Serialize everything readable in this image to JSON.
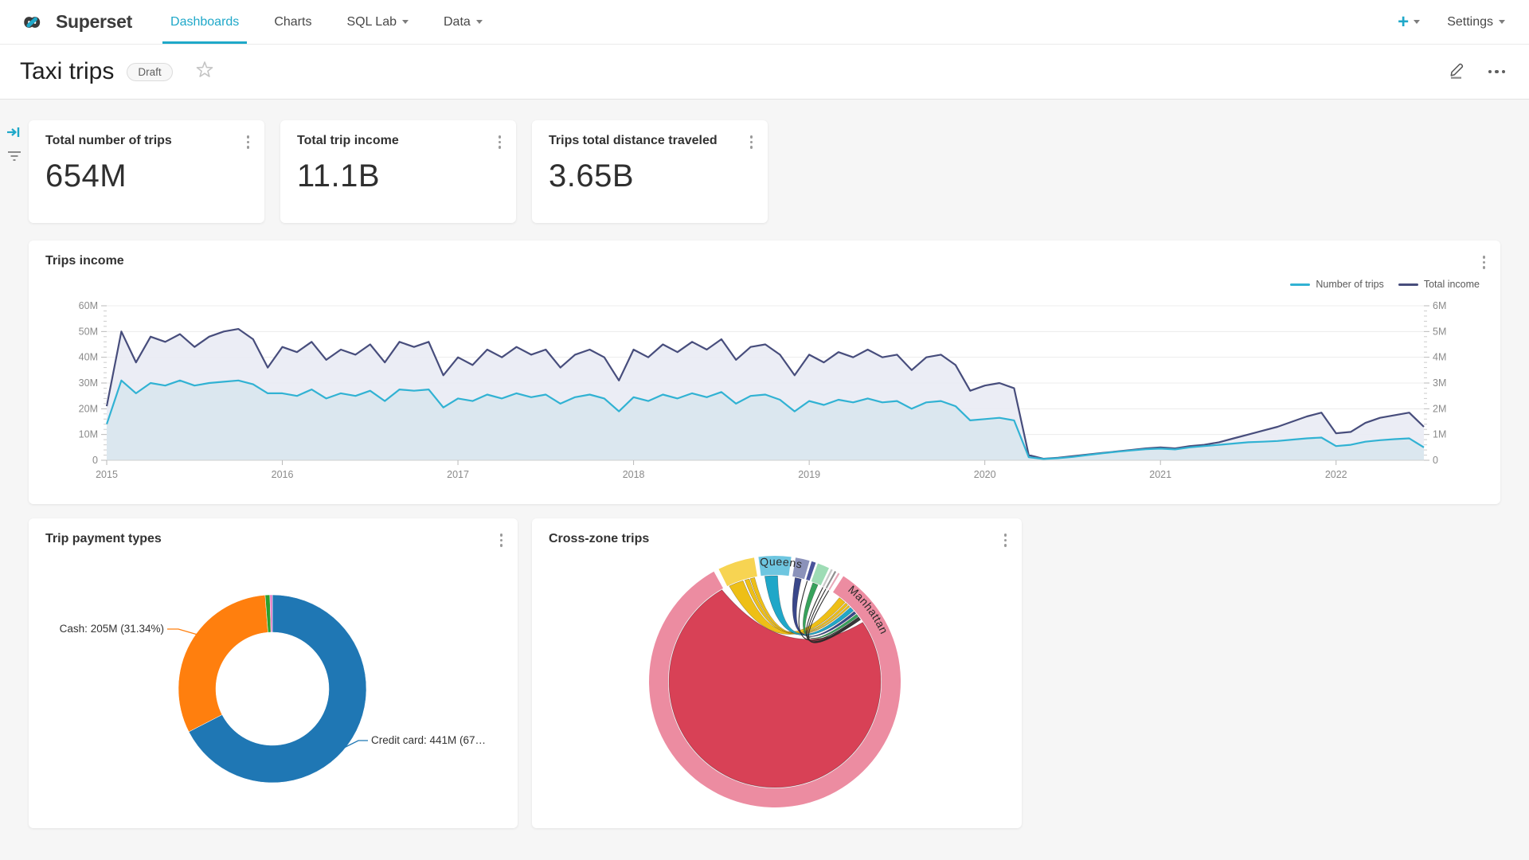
{
  "navbar": {
    "brand": "Superset",
    "items": [
      {
        "label": "Dashboards",
        "active": true,
        "caret": false
      },
      {
        "label": "Charts",
        "active": false,
        "caret": false
      },
      {
        "label": "SQL Lab",
        "active": false,
        "caret": true
      },
      {
        "label": "Data",
        "active": false,
        "caret": true
      }
    ],
    "plus_label": "+",
    "settings_label": "Settings",
    "accent_color": "#1fa8c9"
  },
  "header": {
    "title": "Taxi trips",
    "status_badge": "Draft"
  },
  "kpis": [
    {
      "title": "Total number of trips",
      "value": "654M"
    },
    {
      "title": "Total trip income",
      "value": "11.1B"
    },
    {
      "title": "Trips total distance traveled",
      "value": "3.65B"
    }
  ],
  "chart_data": [
    {
      "type": "line",
      "title": "Trips income",
      "legend_position": "top-right",
      "grid": true,
      "x_start": 2015,
      "x_step": 0.0833333,
      "x_tick_labels": [
        "2015",
        "2016",
        "2017",
        "2018",
        "2019",
        "2020",
        "2021",
        "2022"
      ],
      "y_left": {
        "ticks": [
          "0",
          "10M",
          "20M",
          "30M",
          "40M",
          "50M",
          "60M"
        ],
        "max": 60
      },
      "y_right": {
        "ticks": [
          "0",
          "1M",
          "2M",
          "3M",
          "4M",
          "5M",
          "6M"
        ],
        "max": 6
      },
      "series": [
        {
          "name": "Number of trips",
          "axis": "right",
          "color": "#31b2d3",
          "fill": "#d9e6ee",
          "values": [
            1.4,
            3.1,
            2.6,
            3.0,
            2.9,
            3.1,
            2.9,
            3.0,
            3.05,
            3.1,
            2.95,
            2.6,
            2.6,
            2.5,
            2.75,
            2.4,
            2.6,
            2.5,
            2.7,
            2.3,
            2.75,
            2.7,
            2.75,
            2.05,
            2.4,
            2.3,
            2.55,
            2.4,
            2.6,
            2.45,
            2.55,
            2.2,
            2.45,
            2.55,
            2.4,
            1.9,
            2.45,
            2.3,
            2.55,
            2.4,
            2.6,
            2.45,
            2.65,
            2.2,
            2.5,
            2.55,
            2.35,
            1.9,
            2.3,
            2.15,
            2.35,
            2.25,
            2.4,
            2.25,
            2.3,
            2.0,
            2.25,
            2.3,
            2.1,
            1.55,
            1.6,
            1.65,
            1.55,
            0.12,
            0.05,
            0.08,
            0.13,
            0.2,
            0.27,
            0.33,
            0.38,
            0.43,
            0.45,
            0.42,
            0.5,
            0.55,
            0.6,
            0.65,
            0.7,
            0.72,
            0.75,
            0.8,
            0.85,
            0.88,
            0.55,
            0.6,
            0.72,
            0.78,
            0.82,
            0.85,
            0.5
          ]
        },
        {
          "name": "Total income",
          "axis": "left",
          "color": "#474d7c",
          "fill": "#e9ebf4",
          "values": [
            21,
            50,
            38,
            48,
            46,
            49,
            44,
            48,
            50,
            51,
            47,
            36,
            44,
            42,
            46,
            39,
            43,
            41,
            45,
            38,
            46,
            44,
            46,
            33,
            40,
            37,
            43,
            40,
            44,
            41,
            43,
            36,
            41,
            43,
            40,
            31,
            43,
            40,
            45,
            42,
            46,
            43,
            47,
            39,
            44,
            45,
            41,
            33,
            41,
            38,
            42,
            40,
            43,
            40,
            41,
            35,
            40,
            41,
            37,
            27,
            29,
            30,
            28,
            2,
            0.6,
            1,
            1.6,
            2.2,
            2.8,
            3.4,
            4,
            4.6,
            5,
            4.6,
            5.5,
            6,
            7,
            8.5,
            10,
            11.5,
            13,
            15,
            17,
            18.5,
            10.5,
            11,
            14.5,
            16.5,
            17.5,
            18.5,
            13
          ]
        }
      ]
    },
    {
      "type": "pie",
      "title": "Trip payment types",
      "donut": true,
      "slices": [
        {
          "label": "Credit card",
          "value": 441,
          "color": "#1f77b4"
        },
        {
          "label": "Cash",
          "value": 205,
          "color": "#ff7f0e"
        },
        {
          "label": "",
          "value": 5.3,
          "color": "#2ca02c"
        },
        {
          "label": "",
          "value": 2.7,
          "color": "#e377c2"
        }
      ],
      "callouts": [
        {
          "text": "Cash: 205M (31.34%)",
          "side": "left",
          "color": "#ff7f0e"
        },
        {
          "text": "Credit card: 441M (67…",
          "side": "right",
          "color": "#1f77b4"
        }
      ]
    },
    {
      "type": "chord",
      "title": "Cross-zone trips",
      "arcs": [
        {
          "color": "#f7d452",
          "a0": -26.5,
          "a1": -9.5
        },
        {
          "color": "#6ec6e0",
          "a0": -7.5,
          "a1": 7.5
        },
        {
          "color": "#8b92ba",
          "a0": 9.5,
          "a1": 16
        },
        {
          "color": "#4a549b",
          "a0": 17,
          "a1": 19
        },
        {
          "color": "#9edcb5",
          "a0": 20,
          "a1": 25.5
        },
        {
          "color": "#c9c9c9",
          "a0": 26.5,
          "a1": 27.4
        },
        {
          "color": "#8f8f8f",
          "a0": 28.4,
          "a1": 29.2
        },
        {
          "color": "#e8a7b8",
          "a0": 30.2,
          "a1": 31
        },
        {
          "color": "#ec8ca1",
          "a0": 33,
          "a1": 331
        }
      ],
      "self_chord": {
        "color": "#d84156",
        "a0": 56,
        "a1": 330
      },
      "ribbons": [
        {
          "color": "#edbc0c",
          "s0": -25.5,
          "s1": -17.5,
          "t0": 37.5,
          "t1": 41.5
        },
        {
          "color": "#edbc0c",
          "s0": -16.5,
          "s1": -14,
          "t0": 42,
          "t1": 43.5
        },
        {
          "color": "#edbc0c",
          "s0": -13.5,
          "s1": -11,
          "t0": 44,
          "t1": 45
        },
        {
          "color": "#17a3c6",
          "s0": -5.5,
          "s1": 1.5,
          "t0": 45.5,
          "t1": 48
        },
        {
          "color": "#323f85",
          "s0": 11,
          "s1": 14.5,
          "t0": 48.5,
          "t1": 50
        },
        {
          "color": "#2f9e55",
          "s0": 21,
          "s1": 24,
          "t0": 50.5,
          "t1": 52
        }
      ],
      "strands": [
        [
          17.8,
          52.5
        ],
        [
          27,
          53
        ],
        [
          28.8,
          53.5
        ],
        [
          30.6,
          54
        ]
      ],
      "labels": [
        {
          "text": "Queens",
          "a0": -8,
          "a1": 60,
          "offset": 2
        },
        {
          "text": "Manhattan",
          "a0": 37,
          "a1": 130,
          "offset": 4
        }
      ]
    }
  ]
}
